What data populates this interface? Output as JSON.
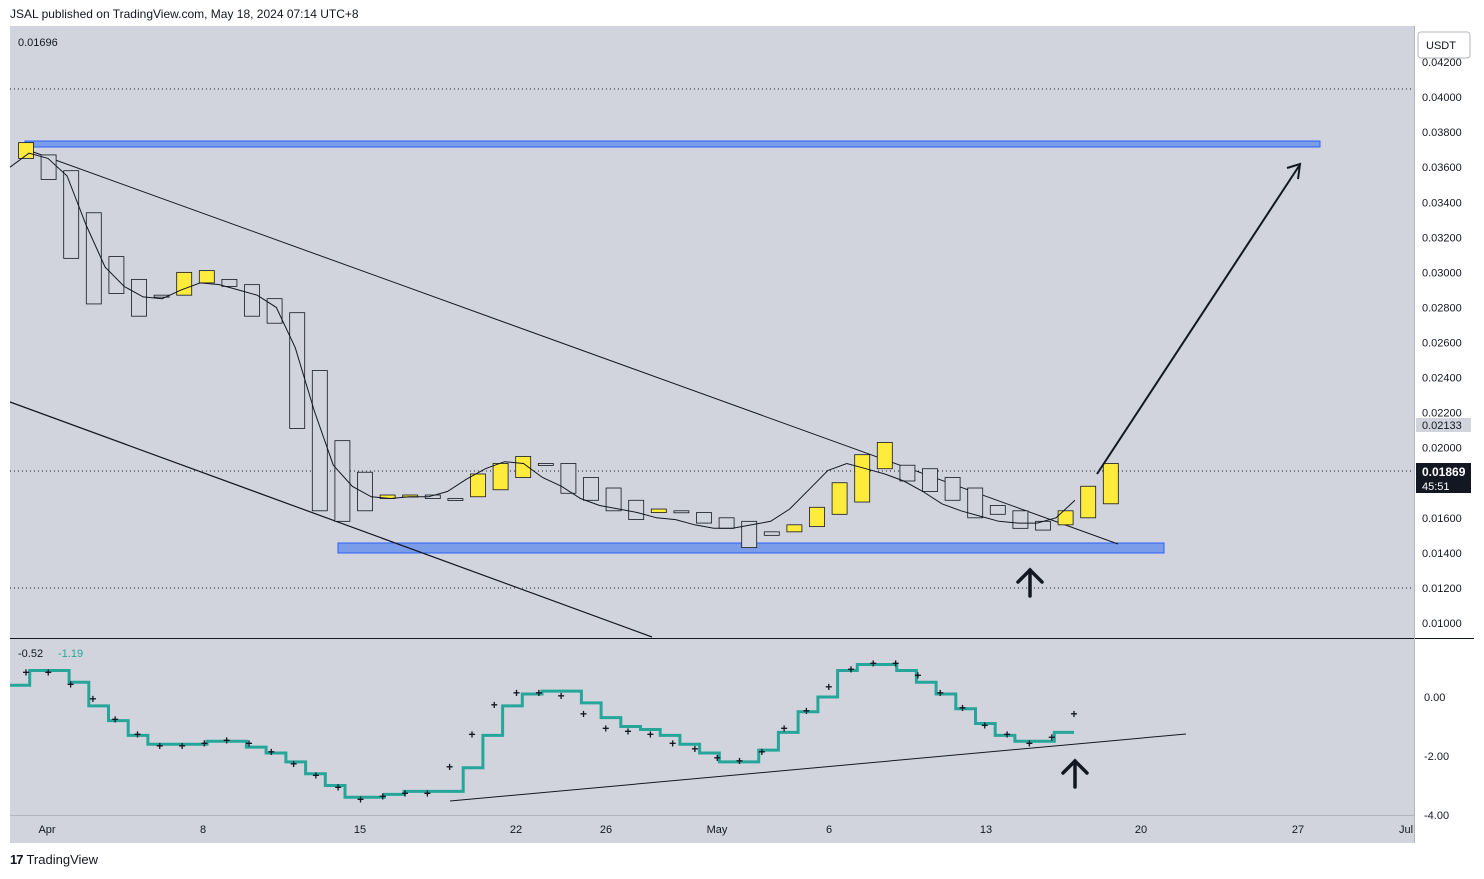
{
  "header": {
    "published": "JSAL published on TradingView.com, May 18, 2024 07:14 UTC+8"
  },
  "footer": {
    "brand": "TradingView",
    "logo": "tradingview-logo-icon"
  },
  "colors": {
    "bg": "#d1d4dc",
    "bull": "#ffeb3b",
    "bear": "#d1d4dc",
    "zone": "#7b9ce8",
    "zone_stroke": "#2962ff",
    "indicator": "#26a69a",
    "axis_text": "#131722"
  },
  "chart_data": [
    {
      "type": "candlestick",
      "title": "",
      "top_left_value": "0.01696",
      "currency": "USDT",
      "y_ticks": [
        "0.04200",
        "0.04000",
        "0.03800",
        "0.03600",
        "0.03400",
        "0.03200",
        "0.03000",
        "0.02800",
        "0.02600",
        "0.02400",
        "0.02200",
        "0.02000",
        "0.01600",
        "0.01400",
        "0.01200",
        "0.01000"
      ],
      "ylim": [
        0.0095,
        0.0435
      ],
      "horizontal_dotted_lines": [
        0.0405,
        0.01869,
        0.0119
      ],
      "price_label": {
        "value": "0.01869",
        "countdown": "45:51"
      },
      "high_label": "0.02133",
      "x_labels": [
        "Apr",
        "8",
        "15",
        "22",
        "26",
        "May",
        "6",
        "13",
        "20",
        "27",
        "Jul"
      ],
      "candles": [
        {
          "o": 0.0365,
          "c": 0.0374,
          "bull": true
        },
        {
          "o": 0.0367,
          "c": 0.0353,
          "bull": false
        },
        {
          "o": 0.0358,
          "c": 0.0308,
          "bull": false
        },
        {
          "o": 0.0334,
          "c": 0.0282,
          "bull": false
        },
        {
          "o": 0.0309,
          "c": 0.0288,
          "bull": false
        },
        {
          "o": 0.0296,
          "c": 0.0275,
          "bull": false
        },
        {
          "o": 0.0287,
          "c": 0.0287,
          "bull": false
        },
        {
          "o": 0.0287,
          "c": 0.03,
          "bull": true
        },
        {
          "o": 0.0294,
          "c": 0.0301,
          "bull": true
        },
        {
          "o": 0.0296,
          "c": 0.0292,
          "bull": false
        },
        {
          "o": 0.0293,
          "c": 0.0275,
          "bull": false
        },
        {
          "o": 0.0285,
          "c": 0.0271,
          "bull": false
        },
        {
          "o": 0.0277,
          "c": 0.0211,
          "bull": false
        },
        {
          "o": 0.0244,
          "c": 0.0164,
          "bull": false
        },
        {
          "o": 0.0204,
          "c": 0.0158,
          "bull": false
        },
        {
          "o": 0.0186,
          "c": 0.0164,
          "bull": false
        },
        {
          "o": 0.0171,
          "c": 0.0173,
          "bull": true
        },
        {
          "o": 0.0173,
          "c": 0.0173,
          "bull": true
        },
        {
          "o": 0.0173,
          "c": 0.0171,
          "bull": false
        },
        {
          "o": 0.0171,
          "c": 0.0171,
          "bull": false
        },
        {
          "o": 0.0172,
          "c": 0.0185,
          "bull": true
        },
        {
          "o": 0.0176,
          "c": 0.0191,
          "bull": true
        },
        {
          "o": 0.0183,
          "c": 0.0195,
          "bull": true
        },
        {
          "o": 0.0191,
          "c": 0.0191,
          "bull": false
        },
        {
          "o": 0.0191,
          "c": 0.0174,
          "bull": false
        },
        {
          "o": 0.0183,
          "c": 0.017,
          "bull": false
        },
        {
          "o": 0.0177,
          "c": 0.0164,
          "bull": false
        },
        {
          "o": 0.017,
          "c": 0.0159,
          "bull": false
        },
        {
          "o": 0.0163,
          "c": 0.0165,
          "bull": true
        },
        {
          "o": 0.0164,
          "c": 0.0163,
          "bull": false
        },
        {
          "o": 0.0163,
          "c": 0.0157,
          "bull": false
        },
        {
          "o": 0.016,
          "c": 0.0154,
          "bull": false
        },
        {
          "o": 0.0158,
          "c": 0.0143,
          "bull": false
        },
        {
          "o": 0.0152,
          "c": 0.015,
          "bull": false
        },
        {
          "o": 0.0152,
          "c": 0.0156,
          "bull": true
        },
        {
          "o": 0.0155,
          "c": 0.0166,
          "bull": true
        },
        {
          "o": 0.0162,
          "c": 0.018,
          "bull": true
        },
        {
          "o": 0.0169,
          "c": 0.0196,
          "bull": true
        },
        {
          "o": 0.0188,
          "c": 0.0203,
          "bull": true
        },
        {
          "o": 0.019,
          "c": 0.0181,
          "bull": false
        },
        {
          "o": 0.0188,
          "c": 0.0175,
          "bull": false
        },
        {
          "o": 0.0183,
          "c": 0.017,
          "bull": false
        },
        {
          "o": 0.0177,
          "c": 0.016,
          "bull": false
        },
        {
          "o": 0.0167,
          "c": 0.0162,
          "bull": false
        },
        {
          "o": 0.0164,
          "c": 0.0154,
          "bull": false
        },
        {
          "o": 0.0158,
          "c": 0.0153,
          "bull": false
        },
        {
          "o": 0.0156,
          "c": 0.0164,
          "bull": true
        },
        {
          "o": 0.016,
          "c": 0.0178,
          "bull": true
        },
        {
          "o": 0.0168,
          "c": 0.0191,
          "bull": true
        }
      ],
      "moving_average": [
        0.036,
        0.0368,
        0.0365,
        0.0355,
        0.0327,
        0.0303,
        0.0292,
        0.0286,
        0.0285,
        0.029,
        0.0294,
        0.0293,
        0.029,
        0.0287,
        0.028,
        0.0257,
        0.0221,
        0.019,
        0.0178,
        0.0172,
        0.0171,
        0.0172,
        0.0172,
        0.0175,
        0.0182,
        0.0188,
        0.0192,
        0.0191,
        0.0183,
        0.0178,
        0.0171,
        0.0167,
        0.0165,
        0.0163,
        0.016,
        0.0159,
        0.0156,
        0.0154,
        0.0154,
        0.0156,
        0.0158,
        0.0165,
        0.0176,
        0.0187,
        0.0191,
        0.0188,
        0.0185,
        0.0181,
        0.0175,
        0.0168,
        0.0164,
        0.0161,
        0.0158,
        0.0157,
        0.0157,
        0.016,
        0.017
      ]
    },
    {
      "type": "line",
      "title": "",
      "legend_values": [
        "-0.52",
        "-1.19"
      ],
      "y_ticks": [
        "0.00",
        "-2.00",
        "-4.00"
      ],
      "ylim": [
        -4.0,
        1.3
      ],
      "step_line": [
        0.4,
        0.9,
        0.9,
        0.5,
        -0.3,
        -0.8,
        -1.3,
        -1.6,
        -1.6,
        -1.6,
        -1.5,
        -1.5,
        -1.7,
        -1.9,
        -2.2,
        -2.6,
        -3.0,
        -3.4,
        -3.4,
        -3.3,
        -3.2,
        -3.2,
        -3.2,
        -2.4,
        -1.3,
        -0.3,
        0.1,
        0.2,
        0.2,
        -0.2,
        -0.7,
        -1.0,
        -1.1,
        -1.3,
        -1.6,
        -1.9,
        -2.2,
        -2.2,
        -1.8,
        -1.2,
        -0.5,
        0.0,
        0.9,
        1.1,
        1.1,
        0.9,
        0.5,
        0.1,
        -0.4,
        -0.9,
        -1.3,
        -1.5,
        -1.5,
        -1.2
      ],
      "dots": [
        0.9,
        0.9,
        0.5,
        0.0,
        -0.7,
        -1.2,
        -1.6,
        -1.6,
        -1.5,
        -1.4,
        -1.5,
        -1.8,
        -2.2,
        -2.6,
        -3.0,
        -3.4,
        -3.3,
        -3.2,
        -3.2,
        -2.3,
        -1.2,
        -0.2,
        0.2,
        0.2,
        0.1,
        -0.5,
        -1.0,
        -1.1,
        -1.2,
        -1.5,
        -1.7,
        -2.0,
        -2.1,
        -1.8,
        -1.0,
        -0.4,
        0.4,
        1.0,
        1.2,
        1.2,
        0.8,
        0.2,
        -0.3,
        -0.9,
        -1.2,
        -1.5,
        -1.3,
        -0.5
      ]
    }
  ]
}
